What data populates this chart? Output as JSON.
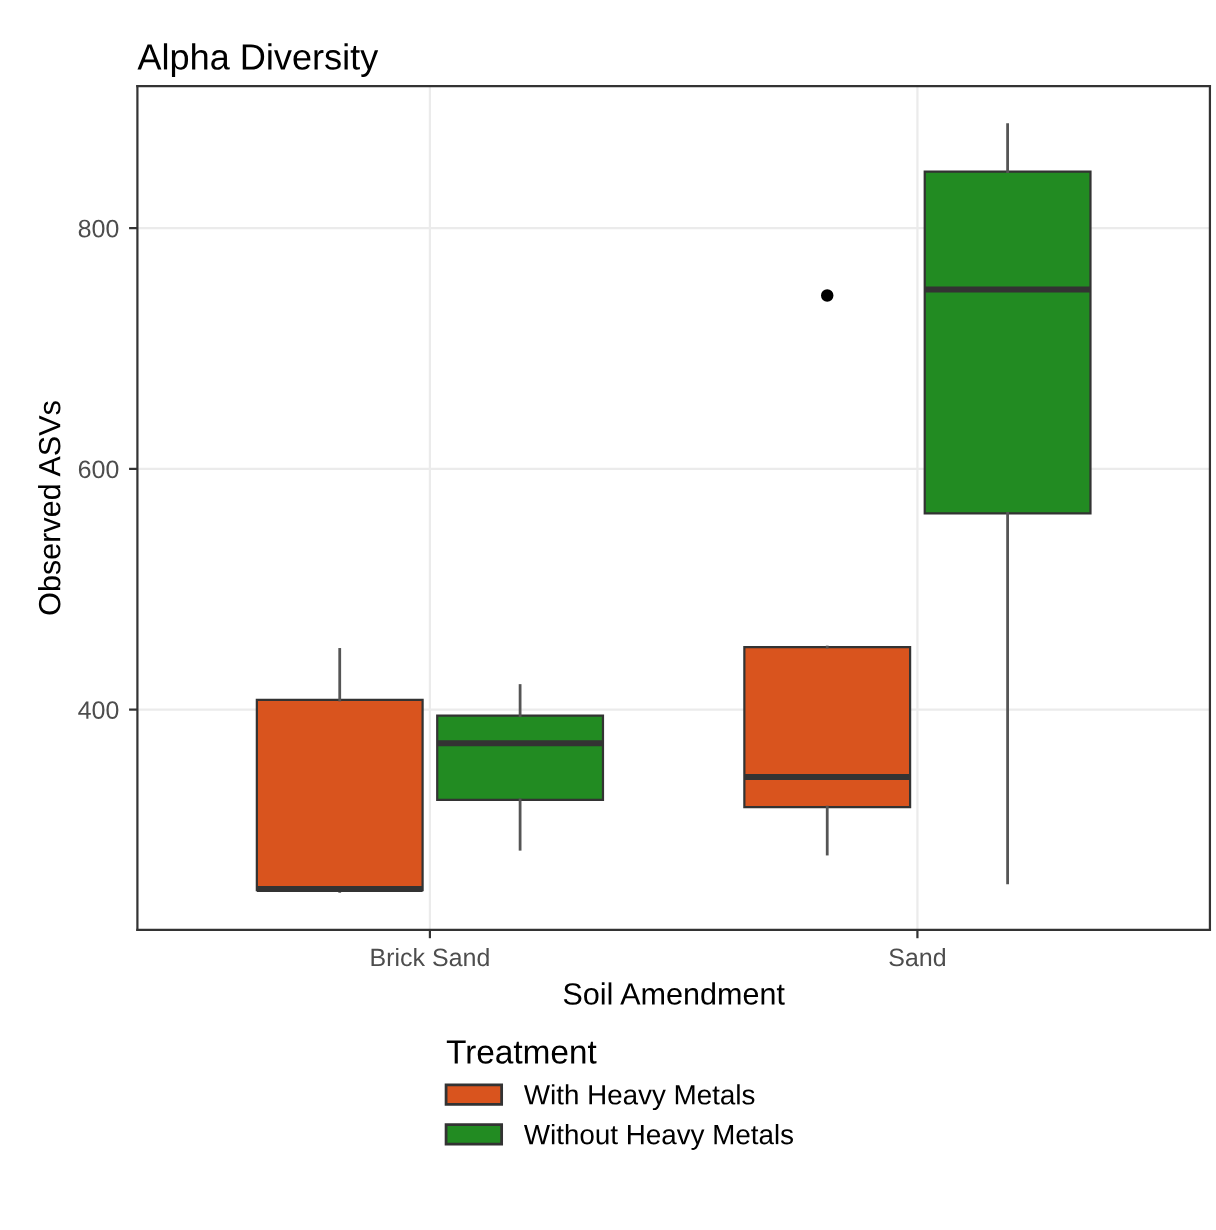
{
  "chart_data": {
    "type": "box",
    "title": "Alpha Diversity",
    "xlabel": "Soil Amendment",
    "ylabel": "Observed ASVs",
    "legend_title": "Treatment",
    "categories": [
      "Brick Sand",
      "Sand"
    ],
    "series": [
      {
        "name": "With Heavy Metals",
        "color": "#d9541e",
        "boxes": [
          {
            "low": 249,
            "q1": 250,
            "median": 251,
            "q3": 408,
            "high": 450
          },
          {
            "low": 280,
            "q1": 319,
            "median": 344,
            "q3": 452,
            "high": 452,
            "outliers": [
              744
            ]
          }
        ]
      },
      {
        "name": "Without Heavy Metals",
        "color": "#228b22",
        "boxes": [
          {
            "low": 284,
            "q1": 325,
            "median": 372,
            "q3": 395,
            "high": 420
          },
          {
            "low": 256,
            "q1": 563,
            "median": 749,
            "q3": 847,
            "high": 886
          }
        ]
      }
    ],
    "ylim": [
      217,
      918
    ],
    "yticks": [
      400,
      600,
      800
    ],
    "grid": true,
    "legend": "bottom"
  }
}
